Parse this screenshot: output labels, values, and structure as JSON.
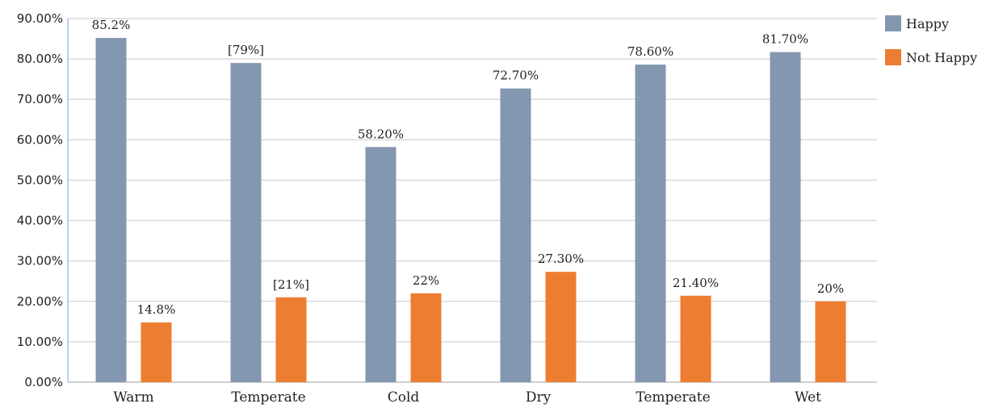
{
  "chart_data": {
    "type": "bar",
    "categories": [
      "Warm",
      "Temperate",
      "Cold",
      "Dry",
      "Temperate",
      "Wet"
    ],
    "series": [
      {
        "name": "Happy",
        "color": "#8497b0",
        "values": [
          85.2,
          79,
          58.2,
          72.7,
          78.6,
          81.7
        ],
        "labels": [
          "85.2%",
          "[79%]",
          "58.20%",
          "72.70%",
          "78.60%",
          "81.70%"
        ]
      },
      {
        "name": "Not Happy",
        "color": "#ed7d31",
        "values": [
          14.8,
          21,
          22,
          27.3,
          21.4,
          20
        ],
        "labels": [
          "14.8%",
          "[21%]",
          "22%",
          "27.30%",
          "21.40%",
          "20%"
        ]
      }
    ],
    "y_ticks": [
      "0.00%",
      "10.00%",
      "20.00%",
      "30.00%",
      "40.00%",
      "50.00%",
      "60.00%",
      "70.00%",
      "80.00%",
      "90.00%"
    ],
    "ylim": [
      0,
      90
    ],
    "grid": true,
    "legend_position": "right"
  }
}
